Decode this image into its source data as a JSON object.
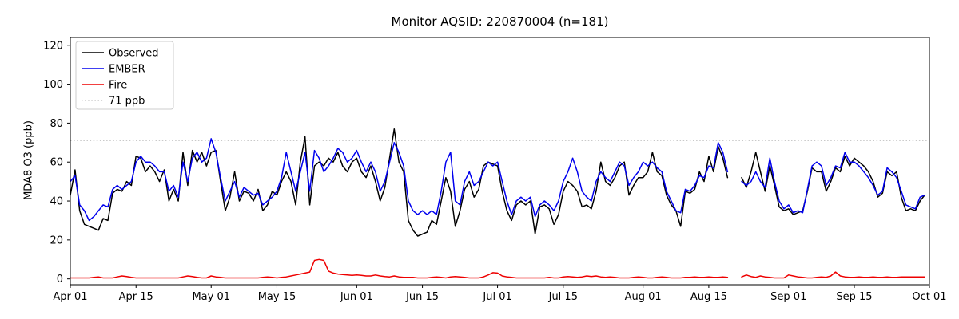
{
  "page": {
    "title": "Monitor AQSID: 220870004 (n=181)"
  },
  "chart_data": {
    "type": "line",
    "title": "Monitor AQSID: 220870004 (n=181)",
    "xlabel": "",
    "ylabel": "MDA8 O3 (ppb)",
    "ylim": [
      -3,
      124
    ],
    "yticks": [
      0,
      20,
      40,
      60,
      80,
      100,
      120
    ],
    "xlim": [
      0,
      183
    ],
    "x_axis_note": "daily values, Apr 01 through Sep 30; day index 0 = Apr 01",
    "xticks": [
      {
        "label": "Apr 01",
        "day": 0
      },
      {
        "label": "Apr 15",
        "day": 14
      },
      {
        "label": "May 01",
        "day": 30
      },
      {
        "label": "May 15",
        "day": 44
      },
      {
        "label": "Jun 01",
        "day": 61
      },
      {
        "label": "Jun 15",
        "day": 75
      },
      {
        "label": "Jul 01",
        "day": 91
      },
      {
        "label": "Jul 15",
        "day": 105
      },
      {
        "label": "Aug 01",
        "day": 122
      },
      {
        "label": "Aug 15",
        "day": 136
      },
      {
        "label": "Sep 01",
        "day": 153
      },
      {
        "label": "Sep 15",
        "day": 167
      },
      {
        "label": "Oct 01",
        "day": 183
      }
    ],
    "grid": false,
    "reference_line": {
      "value": 71,
      "label": "71 ppb",
      "color": "#c9c9c9",
      "style": "dotted"
    },
    "legend": {
      "position": "upper left",
      "entries": [
        "Observed",
        "EMBER",
        "Fire",
        "71 ppb"
      ]
    },
    "series": [
      {
        "name": "Observed",
        "color": "#000000",
        "values": [
          43,
          56,
          35,
          28,
          27,
          26,
          25,
          31,
          30,
          44,
          46,
          45,
          50,
          48,
          63,
          62,
          55,
          58,
          55,
          50,
          56,
          40,
          46,
          40,
          65,
          48,
          66,
          60,
          65,
          58,
          65,
          66,
          50,
          35,
          42,
          55,
          40,
          45,
          44,
          40,
          46,
          35,
          38,
          45,
          43,
          50,
          55,
          50,
          38,
          60,
          73,
          38,
          58,
          60,
          58,
          62,
          60,
          65,
          58,
          55,
          60,
          62,
          55,
          52,
          58,
          50,
          40,
          47,
          62,
          77,
          60,
          55,
          30,
          25,
          22,
          23,
          24,
          30,
          28,
          40,
          52,
          45,
          27,
          35,
          46,
          50,
          42,
          46,
          58,
          60,
          59,
          58,
          45,
          35,
          30,
          38,
          40,
          38,
          40,
          23,
          37,
          38,
          36,
          28,
          33,
          45,
          50,
          48,
          45,
          37,
          38,
          36,
          45,
          60,
          50,
          48,
          52,
          58,
          60,
          43,
          48,
          52,
          52,
          55,
          65,
          55,
          53,
          43,
          38,
          35,
          27,
          45,
          44,
          46,
          55,
          50,
          63,
          55,
          68,
          62,
          52,
          null,
          null,
          52,
          47,
          55,
          65,
          55,
          45,
          58,
          48,
          37,
          35,
          36,
          33,
          34,
          35,
          45,
          57,
          55,
          55,
          45,
          50,
          57,
          55,
          63,
          58,
          62,
          60,
          58,
          55,
          50,
          42,
          44,
          55,
          53,
          55,
          42,
          35,
          36,
          35,
          40,
          43
        ]
      },
      {
        "name": "EMBER",
        "color": "#0000ee",
        "values": [
          50,
          53,
          38,
          35,
          30,
          32,
          35,
          38,
          37,
          46,
          48,
          46,
          48,
          50,
          60,
          63,
          60,
          60,
          58,
          55,
          55,
          45,
          48,
          42,
          60,
          50,
          62,
          65,
          60,
          62,
          72,
          65,
          52,
          40,
          45,
          50,
          42,
          47,
          45,
          43,
          44,
          38,
          40,
          42,
          45,
          52,
          65,
          55,
          45,
          55,
          65,
          45,
          66,
          62,
          55,
          58,
          62,
          67,
          65,
          60,
          62,
          66,
          60,
          55,
          60,
          55,
          45,
          50,
          60,
          70,
          65,
          58,
          40,
          35,
          33,
          35,
          33,
          35,
          33,
          45,
          60,
          65,
          40,
          38,
          50,
          55,
          48,
          50,
          55,
          60,
          58,
          60,
          50,
          40,
          33,
          40,
          42,
          40,
          42,
          32,
          38,
          40,
          38,
          35,
          40,
          50,
          55,
          62,
          55,
          45,
          42,
          40,
          50,
          55,
          52,
          50,
          55,
          60,
          58,
          48,
          52,
          55,
          60,
          58,
          60,
          57,
          55,
          45,
          40,
          35,
          34,
          46,
          45,
          48,
          53,
          52,
          58,
          57,
          70,
          65,
          55,
          null,
          null,
          50,
          48,
          50,
          55,
          50,
          47,
          62,
          50,
          40,
          36,
          38,
          34,
          35,
          34,
          46,
          58,
          60,
          58,
          48,
          52,
          58,
          57,
          65,
          60,
          60,
          58,
          55,
          52,
          48,
          43,
          45,
          57,
          55,
          52,
          45,
          38,
          37,
          36,
          42,
          43
        ]
      },
      {
        "name": "Fire",
        "color": "#ee0000",
        "values": [
          0.5,
          0.5,
          0.5,
          0.5,
          0.5,
          0.8,
          1,
          0.5,
          0.5,
          0.5,
          1,
          1.5,
          1.2,
          0.8,
          0.5,
          0.5,
          0.5,
          0.5,
          0.5,
          0.5,
          0.5,
          0.5,
          0.5,
          0.5,
          1,
          1.5,
          1.2,
          0.8,
          0.5,
          0.5,
          1.5,
          1,
          0.8,
          0.5,
          0.5,
          0.5,
          0.5,
          0.5,
          0.5,
          0.5,
          0.5,
          0.8,
          1,
          0.8,
          0.5,
          0.8,
          1,
          1.5,
          2,
          2.5,
          3,
          3.5,
          9.5,
          10,
          9.5,
          4,
          3,
          2.5,
          2.2,
          2,
          1.8,
          2,
          1.8,
          1.5,
          1.5,
          2,
          1.5,
          1.2,
          1,
          1.5,
          1,
          0.8,
          0.8,
          0.8,
          0.5,
          0.5,
          0.5,
          0.8,
          1,
          0.8,
          0.5,
          1,
          1.2,
          1,
          0.8,
          0.5,
          0.5,
          0.5,
          1,
          2,
          3.2,
          3,
          1.5,
          1,
          0.8,
          0.5,
          0.5,
          0.5,
          0.5,
          0.5,
          0.5,
          0.5,
          0.8,
          0.5,
          0.5,
          1,
          1.2,
          1,
          0.8,
          1,
          1.5,
          1.2,
          1.5,
          1,
          0.8,
          1,
          0.8,
          0.5,
          0.5,
          0.5,
          0.8,
          1,
          0.8,
          0.5,
          0.5,
          0.8,
          1,
          0.8,
          0.5,
          0.5,
          0.5,
          0.8,
          0.8,
          1,
          0.8,
          0.8,
          1,
          0.8,
          0.8,
          1,
          0.8,
          null,
          null,
          1,
          2,
          1.2,
          0.8,
          1.5,
          1,
          0.8,
          0.5,
          0.5,
          0.5,
          2,
          1.5,
          1,
          0.8,
          0.5,
          0.5,
          0.8,
          1,
          0.8,
          1.5,
          3.5,
          1.5,
          1,
          0.8,
          0.8,
          1,
          0.8,
          0.8,
          1,
          0.8,
          0.8,
          1,
          0.8,
          0.8,
          1,
          1,
          1,
          1,
          1,
          1
        ]
      }
    ]
  }
}
